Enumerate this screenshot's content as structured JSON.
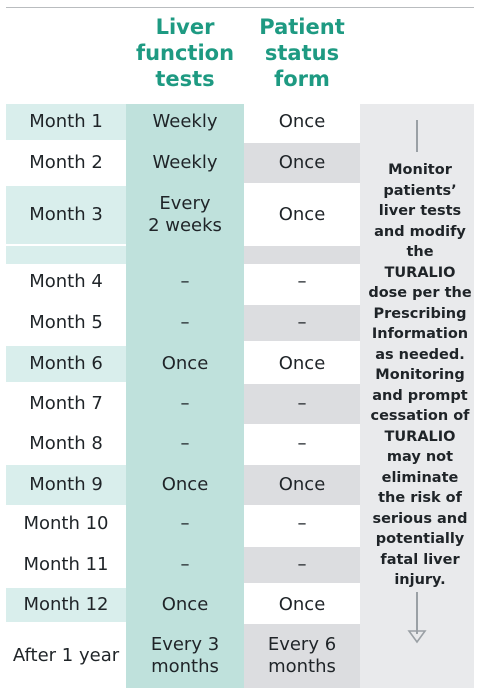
{
  "headers": {
    "liver": [
      "Liver",
      "function",
      "tests"
    ],
    "patient": [
      "Patient",
      "status",
      "form"
    ]
  },
  "rows": [
    {
      "month": "Month 1",
      "liver": "Weekly",
      "patient": "Once"
    },
    {
      "month": "Month 2",
      "liver": "Weekly",
      "patient": "Once"
    },
    {
      "month": "Month 3",
      "liver": "Every\n2 weeks",
      "patient": "Once"
    },
    {
      "month": "Month 4",
      "liver": "–",
      "patient": "–"
    },
    {
      "month": "Month 5",
      "liver": "–",
      "patient": "–"
    },
    {
      "month": "Month 6",
      "liver": "Once",
      "patient": "Once"
    },
    {
      "month": "Month 7",
      "liver": "–",
      "patient": "–"
    },
    {
      "month": "Month 8",
      "liver": "–",
      "patient": "–"
    },
    {
      "month": "Month 9",
      "liver": "Once",
      "patient": "Once"
    },
    {
      "month": "Month 10",
      "liver": "–",
      "patient": "–"
    },
    {
      "month": "Month 11",
      "liver": "–",
      "patient": "–"
    },
    {
      "month": "Month 12",
      "liver": "Once",
      "patient": "Once"
    },
    {
      "month": "After 1 year",
      "liver": "Every 3\nmonths",
      "patient": "Every 6\nmonths"
    }
  ],
  "side_note": [
    "Monitor",
    "patients’",
    "liver tests",
    "and modify",
    "the",
    "TURALIO",
    "dose per the",
    "Prescribing",
    "Information",
    "as needed.",
    "Monitoring",
    "and prompt",
    "cessation of",
    "TURALIO",
    "may not",
    "eliminate",
    "the risk of",
    "serious and",
    "potentially",
    "fatal liver",
    "injury."
  ],
  "colors": {
    "teal_column": "#bfe1dc",
    "month_shade": "#d9eeec",
    "patient_shade": "#dcdde0",
    "side_shade": "#e9eaec",
    "header_text": "#1e9a82"
  }
}
